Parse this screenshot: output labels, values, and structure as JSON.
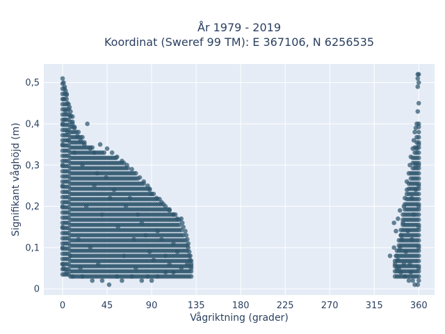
{
  "chart_data": {
    "type": "scatter",
    "title_lines": [
      "År 1979 - 2019",
      "Koordinat (Sweref 99 TM): E 367106, N 6256535"
    ],
    "xlabel": "Vågriktning (grader)",
    "ylabel": "Signifikant våghöjd (m)",
    "xlim": [
      -19,
      376
    ],
    "ylim": [
      -0.015,
      0.545
    ],
    "xticks": [
      0,
      45,
      90,
      135,
      180,
      225,
      270,
      315,
      360
    ],
    "xtick_labels": [
      "0",
      "45",
      "90",
      "135",
      "180",
      "225",
      "270",
      "315",
      "360"
    ],
    "yticks": [
      0,
      0.1,
      0.2,
      0.3,
      0.4,
      0.5
    ],
    "ytick_labels": [
      "0",
      "0,1",
      "0,2",
      "0,3",
      "0,4",
      "0,5"
    ],
    "grid": true,
    "marker_color": "#2f566e",
    "background": "#e5ecf6",
    "points": [
      [
        0,
        0.51
      ],
      [
        1,
        0.5
      ],
      [
        2,
        0.49
      ],
      [
        3,
        0.48
      ],
      [
        4,
        0.47
      ],
      [
        1,
        0.46
      ],
      [
        5,
        0.45
      ],
      [
        7,
        0.44
      ],
      [
        3,
        0.43
      ],
      [
        8,
        0.42
      ],
      [
        2,
        0.41
      ],
      [
        10,
        0.4
      ],
      [
        12,
        0.39
      ],
      [
        25,
        0.4
      ],
      [
        5,
        0.38
      ],
      [
        15,
        0.37
      ],
      [
        18,
        0.36
      ],
      [
        22,
        0.35
      ],
      [
        28,
        0.34
      ],
      [
        32,
        0.33
      ],
      [
        38,
        0.35
      ],
      [
        45,
        0.34
      ],
      [
        50,
        0.33
      ],
      [
        55,
        0.32
      ],
      [
        60,
        0.31
      ],
      [
        65,
        0.3
      ],
      [
        70,
        0.29
      ],
      [
        74,
        0.28
      ],
      [
        78,
        0.27
      ],
      [
        82,
        0.26
      ],
      [
        86,
        0.25
      ],
      [
        88,
        0.24
      ],
      [
        90,
        0.23
      ],
      [
        95,
        0.22
      ],
      [
        100,
        0.21
      ],
      [
        104,
        0.2
      ],
      [
        108,
        0.19
      ],
      [
        112,
        0.18
      ],
      [
        116,
        0.17
      ],
      [
        120,
        0.17
      ],
      [
        121,
        0.16
      ],
      [
        122,
        0.15
      ],
      [
        124,
        0.14
      ],
      [
        125,
        0.13
      ],
      [
        126,
        0.12
      ],
      [
        127,
        0.11
      ],
      [
        127,
        0.1
      ],
      [
        128,
        0.09
      ],
      [
        129,
        0.08
      ],
      [
        129,
        0.07
      ],
      [
        130,
        0.06
      ],
      [
        130,
        0.05
      ],
      [
        126,
        0.06
      ],
      [
        120,
        0.05
      ],
      [
        112,
        0.04
      ],
      [
        104,
        0.04
      ],
      [
        96,
        0.03
      ],
      [
        86,
        0.03
      ],
      [
        80,
        0.02
      ],
      [
        70,
        0.03
      ],
      [
        60,
        0.02
      ],
      [
        55,
        0.03
      ],
      [
        47,
        0.01
      ],
      [
        40,
        0.02
      ],
      [
        30,
        0.02
      ],
      [
        20,
        0.03
      ],
      [
        10,
        0.03
      ],
      [
        4,
        0.04
      ],
      [
        1,
        0.05
      ],
      [
        0,
        0.06
      ],
      [
        0,
        0.1
      ],
      [
        0,
        0.15
      ],
      [
        0,
        0.2
      ],
      [
        0,
        0.25
      ],
      [
        0,
        0.3
      ],
      [
        0,
        0.35
      ],
      [
        0,
        0.4
      ],
      [
        8,
        0.08
      ],
      [
        16,
        0.12
      ],
      [
        24,
        0.2
      ],
      [
        32,
        0.25
      ],
      [
        40,
        0.18
      ],
      [
        48,
        0.22
      ],
      [
        56,
        0.15
      ],
      [
        64,
        0.2
      ],
      [
        72,
        0.12
      ],
      [
        80,
        0.16
      ],
      [
        88,
        0.09
      ],
      [
        96,
        0.14
      ],
      [
        104,
        0.08
      ],
      [
        112,
        0.11
      ],
      [
        20,
        0.3
      ],
      [
        35,
        0.28
      ],
      [
        12,
        0.33
      ],
      [
        6,
        0.36
      ],
      [
        44,
        0.27
      ],
      [
        52,
        0.24
      ],
      [
        68,
        0.22
      ],
      [
        76,
        0.18
      ],
      [
        84,
        0.13
      ],
      [
        92,
        0.07
      ],
      [
        100,
        0.12
      ],
      [
        108,
        0.06
      ],
      [
        116,
        0.09
      ],
      [
        28,
        0.1
      ],
      [
        36,
        0.06
      ],
      [
        18,
        0.05
      ],
      [
        62,
        0.08
      ],
      [
        74,
        0.05
      ],
      [
        90,
        0.02
      ],
      [
        337,
        0.08
      ],
      [
        339,
        0.07
      ],
      [
        340,
        0.05
      ],
      [
        341,
        0.1
      ],
      [
        342,
        0.13
      ],
      [
        344,
        0.16
      ],
      [
        345,
        0.2
      ],
      [
        346,
        0.22
      ],
      [
        348,
        0.24
      ],
      [
        348,
        0.26
      ],
      [
        350,
        0.28
      ],
      [
        351,
        0.3
      ],
      [
        352,
        0.32
      ],
      [
        354,
        0.34
      ],
      [
        355,
        0.36
      ],
      [
        356,
        0.38
      ],
      [
        357,
        0.39
      ],
      [
        358,
        0.4
      ],
      [
        359,
        0.43
      ],
      [
        359,
        0.49
      ],
      [
        359,
        0.51
      ],
      [
        359,
        0.52
      ],
      [
        360,
        0.52
      ],
      [
        360,
        0.5
      ],
      [
        360,
        0.45
      ],
      [
        360,
        0.4
      ],
      [
        360,
        0.35
      ],
      [
        360,
        0.3
      ],
      [
        360,
        0.25
      ],
      [
        360,
        0.2
      ],
      [
        360,
        0.15
      ],
      [
        360,
        0.1
      ],
      [
        360,
        0.05
      ],
      [
        360,
        0.02
      ],
      [
        359,
        0.01
      ],
      [
        356,
        0.01
      ],
      [
        354,
        0.02
      ],
      [
        350,
        0.02
      ],
      [
        346,
        0.03
      ],
      [
        342,
        0.04
      ],
      [
        338,
        0.05
      ],
      [
        336,
        0.06
      ],
      [
        335,
        0.1
      ],
      [
        337,
        0.14
      ],
      [
        339,
        0.17
      ],
      [
        343,
        0.12
      ],
      [
        347,
        0.09
      ],
      [
        351,
        0.06
      ],
      [
        353,
        0.12
      ],
      [
        355,
        0.18
      ],
      [
        357,
        0.24
      ],
      [
        357,
        0.3
      ],
      [
        331,
        0.08
      ],
      [
        335,
        0.16
      ],
      [
        341,
        0.19
      ],
      [
        349,
        0.14
      ],
      [
        353,
        0.22
      ],
      [
        345,
        0.06
      ],
      [
        352,
        0.04
      ],
      [
        358,
        0.34
      ]
    ]
  }
}
